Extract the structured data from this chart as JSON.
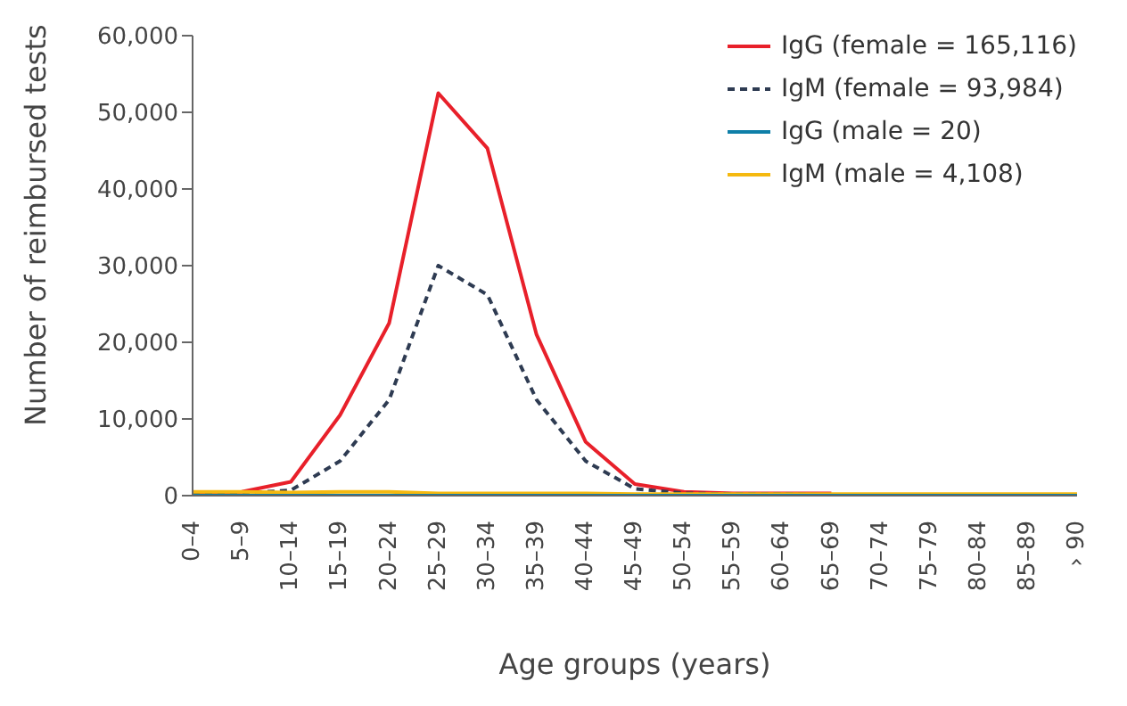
{
  "chart_data": {
    "type": "line",
    "xlabel": "Age groups  (years)",
    "ylabel": "Number of reimbursed tests",
    "categories": [
      "0–4",
      "5–9",
      "10–14",
      "15–19",
      "20–24",
      "25–29",
      "30–34",
      "35–39",
      "40–44",
      "45–49",
      "50–54",
      "55–59",
      "60–64",
      "65–69",
      "70–74",
      "75–79",
      "80–84",
      "85–89",
      "› 90"
    ],
    "series": [
      {
        "name": "IgG (female = 165,116)",
        "color": "#e8202a",
        "line_style": "solid",
        "values": [
          300,
          500,
          1800,
          10500,
          22500,
          52500,
          45300,
          21000,
          7000,
          1500,
          500,
          300,
          300,
          300,
          null,
          null,
          null,
          null,
          null
        ]
      },
      {
        "name": "IgM (female = 93,984)",
        "color": "#2e3b52",
        "line_style": "dashed",
        "values": [
          300,
          300,
          700,
          4500,
          12500,
          30000,
          26200,
          12500,
          4500,
          900,
          300,
          200,
          200,
          100,
          null,
          null,
          null,
          null,
          null
        ]
      },
      {
        "name": "IgG (male = 20)",
        "color": "#0f7fa8",
        "line_style": "solid",
        "values": [
          0,
          0,
          0,
          0,
          0,
          0,
          0,
          0,
          0,
          0,
          0,
          0,
          0,
          0,
          0,
          0,
          0,
          0,
          0
        ]
      },
      {
        "name": "IgM (male = 4,108)",
        "color": "#f5b90f",
        "line_style": "solid",
        "values": [
          500,
          500,
          400,
          500,
          500,
          300,
          300,
          300,
          300,
          200,
          200,
          200,
          200,
          200,
          200,
          200,
          200,
          200,
          200
        ]
      }
    ],
    "ylim": [
      0,
      60000
    ],
    "yticks": [
      {
        "value": 0,
        "label": "0"
      },
      {
        "value": 10000,
        "label": "10,000"
      },
      {
        "value": 20000,
        "label": "20,000"
      },
      {
        "value": 30000,
        "label": "30,000"
      },
      {
        "value": 40000,
        "label": "40,000"
      },
      {
        "value": 50000,
        "label": "50,000"
      },
      {
        "value": 60000,
        "label": "60,000"
      }
    ],
    "grid": false,
    "legend": "top right",
    "marker": "none"
  }
}
